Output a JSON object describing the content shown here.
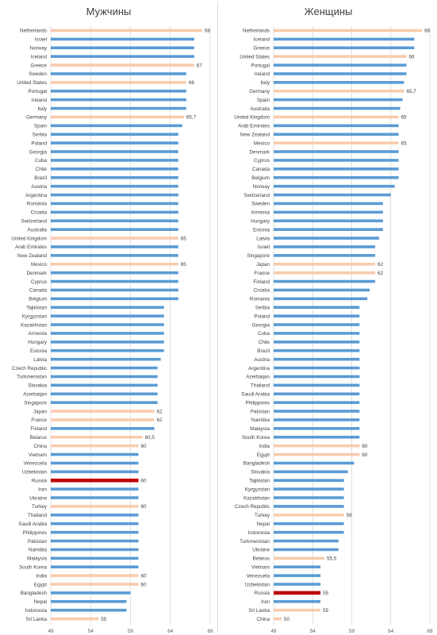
{
  "colors": {
    "default": "#5b9bd5",
    "highlight": "#f8cbad",
    "russia": "#c00000",
    "grid": "#d9d9d9"
  },
  "chart_data": [
    {
      "type": "bar",
      "orientation": "horizontal",
      "title": "Мужчины",
      "xlim": [
        49,
        69
      ],
      "xticks": [
        "49",
        "54",
        "59",
        "64",
        "69"
      ],
      "grid": true,
      "categories": [
        "Netherlands",
        "Israel",
        "Norway",
        "Iceland",
        "Greece",
        "Sweden",
        "United States",
        "Portugal",
        "Ireland",
        "Italy",
        "Germany",
        "Spain",
        "Serbia",
        "Poland",
        "Georgia",
        "Cuba",
        "Chile",
        "Brazil",
        "Austria",
        "Argentina",
        "Romania",
        "Croatia",
        "Switzerland",
        "Australia",
        "United Kingdom",
        "Arab Emirates",
        "New Zealand",
        "Mexico",
        "Denmark",
        "Cyprus",
        "Canada",
        "Belgium",
        "Tajikistan",
        "Kyrgyzstan",
        "Kazakhstan",
        "Armenia",
        "Hungary",
        "Estonia",
        "Latvia",
        "Czech Republic",
        "Turkmenistan",
        "Slovakia",
        "Azerbaijan",
        "Singapore",
        "Japan",
        "France",
        "Finland",
        "Belarus",
        "China",
        "Vietnam",
        "Venezuela",
        "Uzbekistan",
        "Russia",
        "Iran",
        "Ukraine",
        "Turkey",
        "Thailand",
        "Saudi Arabia",
        "Philippines",
        "Pakistan",
        "Namibia",
        "Malaysia",
        "South Korea",
        "India",
        "Egypt",
        "Bangladesh",
        "Nepal",
        "Indonesia",
        "Sri Lanka"
      ],
      "values": [
        68,
        67,
        67,
        67,
        67,
        66,
        66,
        66,
        66,
        66,
        65.7,
        65.5,
        65,
        65,
        65,
        65,
        65,
        65,
        65,
        65,
        65,
        65,
        65,
        65,
        65,
        65,
        65,
        65,
        65,
        65,
        65,
        65,
        63.2,
        63.2,
        63.2,
        63.2,
        63.2,
        63.2,
        62.8,
        62.4,
        62.4,
        62.4,
        62.4,
        62.4,
        62,
        62,
        62,
        60.5,
        60,
        60,
        60,
        60,
        60,
        60,
        60,
        60,
        60,
        60,
        60,
        60,
        60,
        60,
        60,
        60,
        60,
        59,
        58.5,
        58.5,
        55
      ],
      "highlight": [
        "Netherlands",
        "Greece",
        "United States",
        "Germany",
        "United Kingdom",
        "Mexico",
        "Japan",
        "France",
        "Belarus",
        "China",
        "Turkey",
        "India",
        "Egypt",
        "Sri Lanka"
      ],
      "special": [
        "Russia"
      ],
      "data_labels": [
        {
          "category": "Netherlands",
          "text": "68"
        },
        {
          "category": "Greece",
          "text": "67"
        },
        {
          "category": "United States",
          "text": "66"
        },
        {
          "category": "Germany",
          "text": "65,7"
        },
        {
          "category": "United Kingdom",
          "text": "65"
        },
        {
          "category": "Mexico",
          "text": "65"
        },
        {
          "category": "Japan",
          "text": "62"
        },
        {
          "category": "France",
          "text": "62"
        },
        {
          "category": "Belarus",
          "text": "60,5"
        },
        {
          "category": "China",
          "text": "60"
        },
        {
          "category": "Russia",
          "text": "60"
        },
        {
          "category": "Turkey",
          "text": "60"
        },
        {
          "category": "India",
          "text": "60"
        },
        {
          "category": "Egypt",
          "text": "60"
        },
        {
          "category": "Sri Lanka",
          "text": "55"
        }
      ]
    },
    {
      "type": "bar",
      "orientation": "horizontal",
      "title": "Женщины",
      "xlim": [
        49,
        69
      ],
      "xticks": [
        "49",
        "54",
        "59",
        "64",
        "69"
      ],
      "grid": true,
      "categories": [
        "Netherlands",
        "Iceland",
        "Greece",
        "United States",
        "Portugal",
        "Ireland",
        "Italy",
        "Germany",
        "Spain",
        "Australia",
        "United Kingdom",
        "Arab Emirates",
        "New Zealand",
        "Mexico",
        "Denmark",
        "Cyprus",
        "Canada",
        "Belgium",
        "Norway",
        "Switzerland",
        "Sweden",
        "Armenia",
        "Hungary",
        "Estonia",
        "Latvia",
        "Israel",
        "Singapore",
        "Japan",
        "France",
        "Finland",
        "Croatia",
        "Romania",
        "Serbia",
        "Poland",
        "Georgia",
        "Cuba",
        "Chile",
        "Brazil",
        "Austria",
        "Argentina",
        "Azerbaijan",
        "Thailand",
        "Saudi Arabia",
        "Philippines",
        "Pakistan",
        "Namibia",
        "Malaysia",
        "South Korea",
        "India",
        "Egypt",
        "Bangladesh",
        "Slovakia",
        "Tajikistan",
        "Kyrgyzstan",
        "Kazakhstan",
        "Czech Republic",
        "Turkey",
        "Nepal",
        "Indonesia",
        "Turkmenistan",
        "Ukraine",
        "Belarus",
        "Vietnam",
        "Venezuela",
        "Uzbekistan",
        "Russia",
        "Iran",
        "Sri Lanka",
        "China"
      ],
      "values": [
        68,
        67,
        67,
        66,
        66,
        66,
        65.7,
        65.7,
        65.5,
        65.2,
        65,
        65,
        65,
        65,
        65,
        65,
        65,
        65,
        64.5,
        64,
        63,
        63,
        63,
        63,
        62.5,
        62,
        62,
        62,
        62,
        62,
        61.3,
        61,
        60,
        60,
        60,
        60,
        60,
        60,
        60,
        60,
        60,
        60,
        60,
        60,
        60,
        60,
        60,
        60,
        60,
        60,
        59.3,
        58.5,
        58,
        58,
        58,
        58,
        58,
        58,
        58,
        57.3,
        57.3,
        55.5,
        55,
        55,
        55,
        55,
        55,
        55,
        50
      ],
      "highlight": [
        "Netherlands",
        "United States",
        "Germany",
        "United Kingdom",
        "Mexico",
        "Japan",
        "France",
        "India",
        "Egypt",
        "Turkey",
        "Belarus",
        "Sri Lanka",
        "China"
      ],
      "special": [
        "Russia"
      ],
      "data_labels": [
        {
          "category": "Netherlands",
          "text": "68"
        },
        {
          "category": "United States",
          "text": "66"
        },
        {
          "category": "Germany",
          "text": "65,7"
        },
        {
          "category": "United Kingdom",
          "text": "65"
        },
        {
          "category": "Mexico",
          "text": "65"
        },
        {
          "category": "Japan",
          "text": "62"
        },
        {
          "category": "France",
          "text": "62"
        },
        {
          "category": "India",
          "text": "60"
        },
        {
          "category": "Egypt",
          "text": "60"
        },
        {
          "category": "Turkey",
          "text": "58"
        },
        {
          "category": "Belarus",
          "text": "55,5"
        },
        {
          "category": "Russia",
          "text": "55"
        },
        {
          "category": "Sri Lanka",
          "text": "55"
        },
        {
          "category": "China",
          "text": "50"
        }
      ]
    }
  ]
}
